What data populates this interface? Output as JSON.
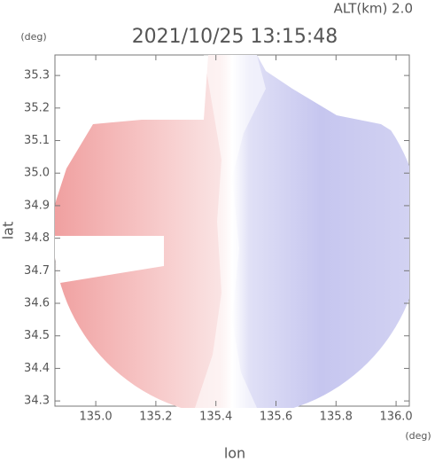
{
  "chart_data": {
    "type": "heatmap",
    "title": "2021/10/25 13:15:48",
    "subtitle": "ALT(km) 2.0",
    "x_label": "lon",
    "x_unit": "(deg)",
    "y_label": "lat",
    "y_unit": "(deg)",
    "xlim": [
      134.864,
      136.044
    ],
    "xticks": [
      {
        "value": 135,
        "label": "135.0"
      },
      135.2,
      135.4,
      135.6,
      135.8,
      {
        "value": 136,
        "label": "136.0"
      }
    ],
    "ylim": [
      34.284,
      35.363
    ],
    "yticks": [
      34.3,
      34.4,
      34.5,
      34.6,
      34.7,
      34.8,
      34.9,
      {
        "value": 35,
        "label": "35.0"
      },
      35.1,
      35.2,
      35.3
    ]
  }
}
